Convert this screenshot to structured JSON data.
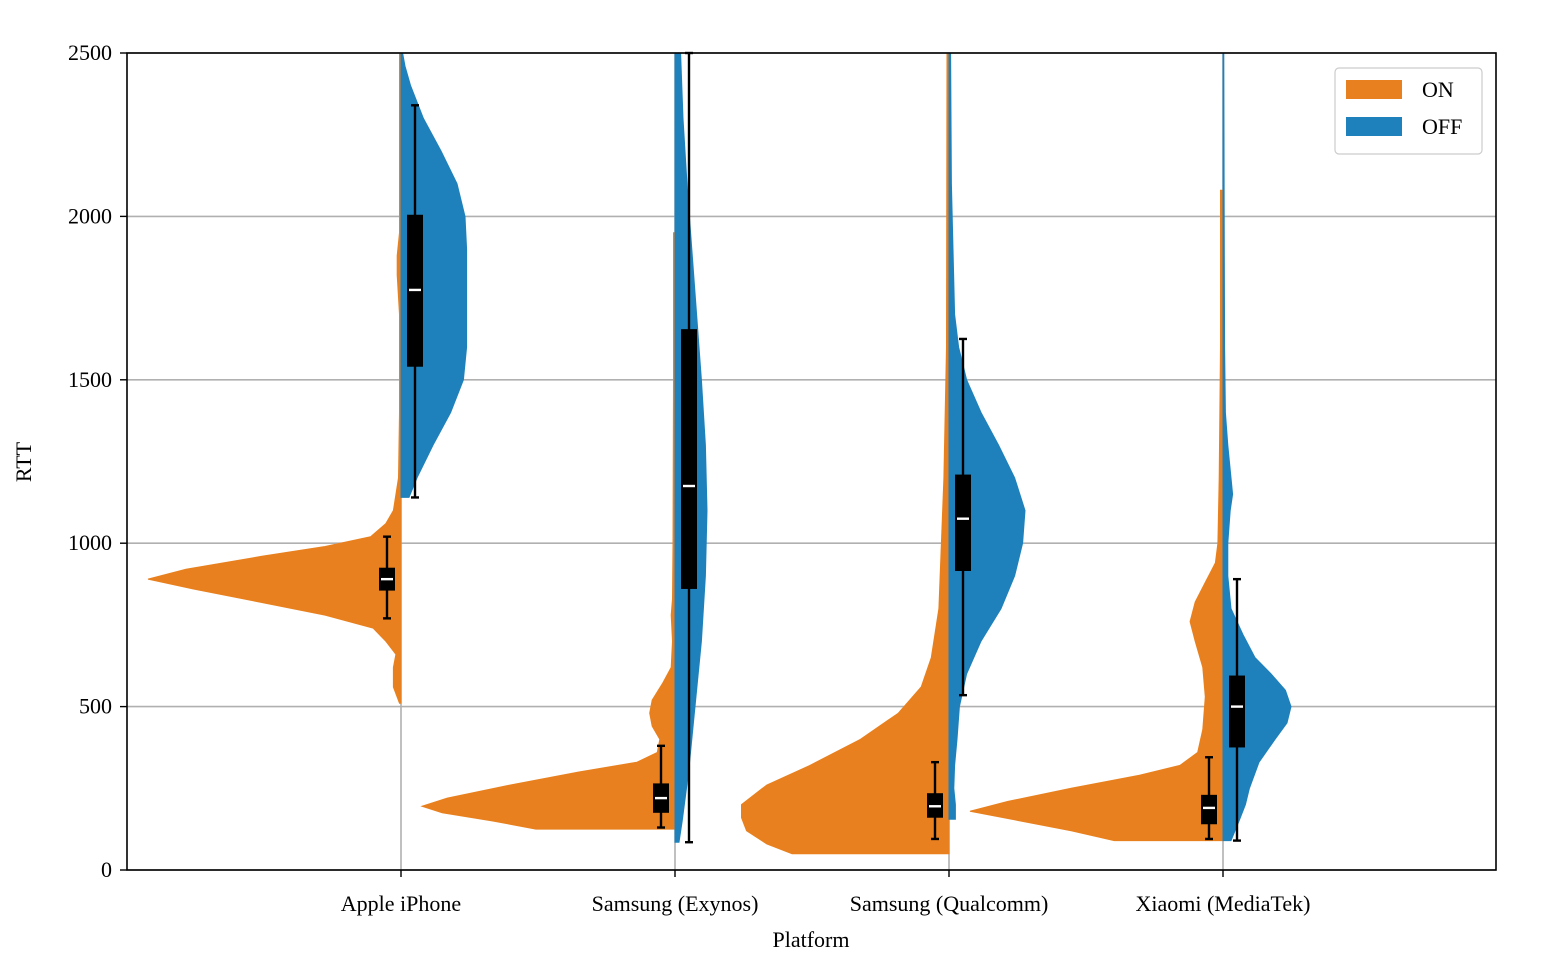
{
  "chart_data": {
    "type": "violin",
    "title": "",
    "xlabel": "Platform",
    "ylabel": "RTT",
    "ylim": [
      0,
      2500
    ],
    "yticks": [
      0,
      500,
      1000,
      1500,
      2000,
      2500
    ],
    "grid": true,
    "legend_position": "top-right",
    "categories": [
      "Apple iPhone",
      "Samsung (Exynos)",
      "Samsung (Qualcomm)",
      "Xiaomi (MediaTek)"
    ],
    "series": [
      {
        "name": "ON",
        "color": "#e8801f",
        "side": "left",
        "groups": [
          {
            "density": [
              [
                510,
                0.006
              ],
              [
                560,
                0.03
              ],
              [
                620,
                0.03
              ],
              [
                660,
                0.02
              ],
              [
                700,
                0.06
              ],
              [
                740,
                0.11
              ],
              [
                780,
                0.3
              ],
              [
                820,
                0.56
              ],
              [
                860,
                0.82
              ],
              [
                890,
                1.0
              ],
              [
                920,
                0.85
              ],
              [
                960,
                0.55
              ],
              [
                990,
                0.3
              ],
              [
                1020,
                0.12
              ],
              [
                1060,
                0.06
              ],
              [
                1100,
                0.03
              ],
              [
                1200,
                0.01
              ],
              [
                1400,
                0.006
              ],
              [
                1700,
                0.006
              ],
              [
                1820,
                0.015
              ],
              [
                1880,
                0.015
              ],
              [
                1950,
                0.006
              ],
              [
                2500,
                0.006
              ]
            ],
            "box": {
              "whislo": 770,
              "q1": 855,
              "median": 890,
              "q3": 925,
              "whishi": 1020
            }
          },
          {
            "density": [
              [
                125,
                0.55
              ],
              [
                150,
                0.72
              ],
              [
                175,
                0.92
              ],
              [
                195,
                1.0
              ],
              [
                220,
                0.9
              ],
              [
                260,
                0.65
              ],
              [
                300,
                0.38
              ],
              [
                330,
                0.15
              ],
              [
                360,
                0.07
              ],
              [
                400,
                0.06
              ],
              [
                440,
                0.09
              ],
              [
                480,
                0.1
              ],
              [
                520,
                0.09
              ],
              [
                570,
                0.05
              ],
              [
                620,
                0.015
              ],
              [
                700,
                0.01
              ],
              [
                780,
                0.015
              ],
              [
                830,
                0.01
              ],
              [
                1000,
                0.008
              ],
              [
                1500,
                0.006
              ],
              [
                1950,
                0.006
              ]
            ],
            "box": {
              "whislo": 130,
              "q1": 175,
              "median": 220,
              "q3": 265,
              "whishi": 380
            }
          },
          {
            "density": [
              [
                50,
                0.62
              ],
              [
                80,
                0.72
              ],
              [
                120,
                0.8
              ],
              [
                160,
                0.82
              ],
              [
                200,
                0.82
              ],
              [
                260,
                0.72
              ],
              [
                320,
                0.55
              ],
              [
                400,
                0.35
              ],
              [
                480,
                0.2
              ],
              [
                560,
                0.11
              ],
              [
                650,
                0.07
              ],
              [
                800,
                0.04
              ],
              [
                1000,
                0.03
              ],
              [
                1200,
                0.02
              ],
              [
                1600,
                0.01
              ],
              [
                2500,
                0.008
              ]
            ],
            "box": {
              "whislo": 95,
              "q1": 160,
              "median": 195,
              "q3": 235,
              "whishi": 330
            }
          },
          {
            "density": [
              [
                90,
                0.43
              ],
              [
                120,
                0.6
              ],
              [
                150,
                0.8
              ],
              [
                180,
                1.0
              ],
              [
                210,
                0.85
              ],
              [
                250,
                0.6
              ],
              [
                290,
                0.33
              ],
              [
                320,
                0.17
              ],
              [
                360,
                0.1
              ],
              [
                430,
                0.08
              ],
              [
                530,
                0.07
              ],
              [
                620,
                0.08
              ],
              [
                700,
                0.11
              ],
              [
                760,
                0.13
              ],
              [
                820,
                0.11
              ],
              [
                880,
                0.07
              ],
              [
                940,
                0.03
              ],
              [
                1000,
                0.02
              ],
              [
                1200,
                0.015
              ],
              [
                1600,
                0.01
              ],
              [
                2080,
                0.01
              ]
            ],
            "box": {
              "whislo": 95,
              "q1": 140,
              "median": 190,
              "q3": 230,
              "whishi": 345
            }
          }
        ]
      },
      {
        "name": "OFF",
        "color": "#1f81bb",
        "side": "right",
        "groups": [
          {
            "density": [
              [
                1140,
                0.1
              ],
              [
                1200,
                0.2
              ],
              [
                1300,
                0.4
              ],
              [
                1400,
                0.62
              ],
              [
                1500,
                0.78
              ],
              [
                1600,
                0.82
              ],
              [
                1700,
                0.82
              ],
              [
                1800,
                0.82
              ],
              [
                1900,
                0.82
              ],
              [
                2000,
                0.8
              ],
              [
                2100,
                0.7
              ],
              [
                2200,
                0.5
              ],
              [
                2300,
                0.28
              ],
              [
                2400,
                0.12
              ],
              [
                2460,
                0.05
              ],
              [
                2500,
                0.02
              ]
            ],
            "box": {
              "whislo": 1140,
              "q1": 1540,
              "median": 1775,
              "q3": 2005,
              "whishi": 2340
            }
          },
          {
            "density": [
              [
                85,
                0.05
              ],
              [
                150,
                0.09
              ],
              [
                300,
                0.17
              ],
              [
                500,
                0.25
              ],
              [
                700,
                0.33
              ],
              [
                900,
                0.38
              ],
              [
                1100,
                0.4
              ],
              [
                1300,
                0.38
              ],
              [
                1500,
                0.33
              ],
              [
                1700,
                0.27
              ],
              [
                1900,
                0.21
              ],
              [
                2100,
                0.15
              ],
              [
                2300,
                0.1
              ],
              [
                2500,
                0.07
              ]
            ],
            "box": {
              "whislo": 85,
              "q1": 860,
              "median": 1175,
              "q3": 1655,
              "whishi": 2500
            }
          },
          {
            "density": [
              [
                155,
                0.08
              ],
              [
                200,
                0.08
              ],
              [
                250,
                0.06
              ],
              [
                320,
                0.07
              ],
              [
                400,
                0.1
              ],
              [
                500,
                0.13
              ],
              [
                600,
                0.22
              ],
              [
                700,
                0.4
              ],
              [
                800,
                0.65
              ],
              [
                900,
                0.82
              ],
              [
                1000,
                0.92
              ],
              [
                1100,
                0.95
              ],
              [
                1200,
                0.82
              ],
              [
                1300,
                0.62
              ],
              [
                1400,
                0.4
              ],
              [
                1500,
                0.22
              ],
              [
                1600,
                0.12
              ],
              [
                1700,
                0.07
              ],
              [
                1900,
                0.05
              ],
              [
                2100,
                0.03
              ],
              [
                2500,
                0.02
              ]
            ],
            "box": {
              "whislo": 535,
              "q1": 915,
              "median": 1075,
              "q3": 1210,
              "whishi": 1625
            }
          },
          {
            "density": [
              [
                90,
                0.1
              ],
              [
                150,
                0.2
              ],
              [
                200,
                0.28
              ],
              [
                250,
                0.33
              ],
              [
                330,
                0.45
              ],
              [
                400,
                0.65
              ],
              [
                450,
                0.8
              ],
              [
                500,
                0.85
              ],
              [
                550,
                0.78
              ],
              [
                600,
                0.6
              ],
              [
                650,
                0.4
              ],
              [
                720,
                0.25
              ],
              [
                800,
                0.1
              ],
              [
                900,
                0.06
              ],
              [
                1000,
                0.06
              ],
              [
                1100,
                0.09
              ],
              [
                1150,
                0.12
              ],
              [
                1200,
                0.1
              ],
              [
                1300,
                0.06
              ],
              [
                1400,
                0.03
              ],
              [
                1600,
                0.02
              ],
              [
                2000,
                0.015
              ],
              [
                2500,
                0.01
              ]
            ],
            "box": {
              "whislo": 90,
              "q1": 375,
              "median": 500,
              "q3": 595,
              "whishi": 890
            }
          }
        ]
      }
    ]
  }
}
